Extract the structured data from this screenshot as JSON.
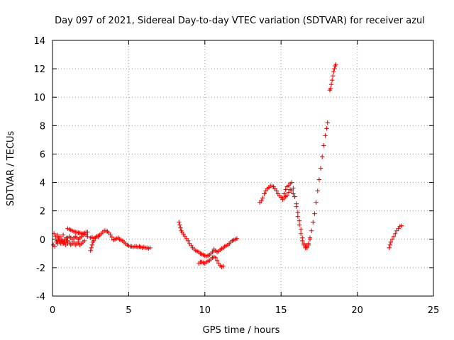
{
  "chart_data": {
    "type": "scatter",
    "title": "Day 097 of 2021, Sidereal Day-to-day VTEC variation (SDTVAR) for receiver azul",
    "xlabel": "GPS time / hours",
    "ylabel": "SDTVAR / TECUs",
    "xlim": [
      0,
      25
    ],
    "ylim": [
      -4,
      14
    ],
    "xticks": [
      "0",
      "5",
      "10",
      "15",
      "20",
      "25"
    ],
    "yticks": [
      "-4",
      "-2",
      "0",
      "2",
      "4",
      "6",
      "8",
      "10",
      "12",
      "14"
    ],
    "grid": true,
    "marker": "+",
    "color": "#ff0000",
    "series": [
      {
        "name": "SDTVAR",
        "segments": [
          [
            [
              0.05,
              -0.4
            ],
            [
              0.1,
              0.4
            ],
            [
              0.15,
              -0.5
            ],
            [
              0.2,
              0.2
            ],
            [
              0.25,
              -0.2
            ],
            [
              0.3,
              0.3
            ],
            [
              0.35,
              -0.3
            ],
            [
              0.4,
              0.1
            ],
            [
              0.45,
              -0.1
            ],
            [
              0.5,
              0.2
            ],
            [
              0.55,
              -0.3
            ],
            [
              0.6,
              0.0
            ],
            [
              0.65,
              -0.1
            ],
            [
              0.7,
              0.3
            ],
            [
              0.75,
              -0.2
            ],
            [
              0.8,
              0.0
            ],
            [
              0.85,
              -0.4
            ],
            [
              0.9,
              0.1
            ],
            [
              0.95,
              -0.1
            ],
            [
              1.0,
              0.1
            ]
          ],
          [
            [
              0.3,
              -0.1
            ],
            [
              0.4,
              0.0
            ],
            [
              0.5,
              -0.2
            ],
            [
              0.6,
              -0.1
            ],
            [
              0.7,
              -0.3
            ],
            [
              0.8,
              -0.2
            ],
            [
              0.9,
              -0.1
            ],
            [
              1.0,
              -0.3
            ],
            [
              1.1,
              -0.2
            ],
            [
              1.2,
              -0.4
            ],
            [
              1.3,
              -0.3
            ],
            [
              1.4,
              -0.2
            ],
            [
              1.5,
              -0.4
            ],
            [
              1.6,
              -0.3
            ],
            [
              1.7,
              -0.2
            ],
            [
              1.8,
              -0.4
            ],
            [
              1.9,
              -0.3
            ],
            [
              2.0,
              -0.2
            ],
            [
              2.1,
              -0.1
            ]
          ],
          [
            [
              1.0,
              0.75
            ],
            [
              1.1,
              0.7
            ],
            [
              1.2,
              0.65
            ],
            [
              1.3,
              0.6
            ],
            [
              1.4,
              0.55
            ],
            [
              1.5,
              0.5
            ],
            [
              1.6,
              0.5
            ],
            [
              1.7,
              0.45
            ],
            [
              1.8,
              0.45
            ],
            [
              1.9,
              0.4
            ],
            [
              2.0,
              0.4
            ],
            [
              2.1,
              0.45
            ],
            [
              2.2,
              0.5
            ],
            [
              2.3,
              0.5
            ]
          ],
          [
            [
              1.0,
              0.1
            ],
            [
              1.1,
              0.2
            ],
            [
              1.2,
              0.1
            ],
            [
              1.3,
              0.0
            ],
            [
              1.4,
              0.1
            ],
            [
              1.5,
              0.2
            ],
            [
              1.6,
              0.1
            ],
            [
              1.7,
              0.0
            ],
            [
              1.8,
              0.1
            ],
            [
              1.9,
              0.2
            ],
            [
              2.0,
              0.3
            ],
            [
              2.1,
              0.35
            ],
            [
              2.2,
              0.3
            ],
            [
              2.3,
              0.2
            ]
          ],
          [
            [
              2.5,
              -0.8
            ],
            [
              2.55,
              -0.6
            ],
            [
              2.6,
              -0.4
            ],
            [
              2.65,
              -0.2
            ],
            [
              2.7,
              -0.1
            ],
            [
              2.8,
              0.1
            ],
            [
              2.9,
              0.2
            ],
            [
              3.0,
              0.2
            ],
            [
              3.1,
              0.3
            ],
            [
              3.2,
              0.4
            ],
            [
              3.3,
              0.5
            ],
            [
              3.4,
              0.6
            ],
            [
              3.5,
              0.6
            ],
            [
              3.6,
              0.55
            ],
            [
              3.7,
              0.45
            ],
            [
              3.8,
              0.3
            ],
            [
              3.9,
              0.15
            ],
            [
              4.0,
              0.0
            ]
          ],
          [
            [
              2.5,
              0.1
            ],
            [
              2.6,
              0.15
            ],
            [
              2.7,
              0.05
            ],
            [
              2.8,
              0.1
            ],
            [
              2.9,
              0.2
            ],
            [
              3.0,
              0.25
            ]
          ],
          [
            [
              4.0,
              -0.05
            ],
            [
              4.1,
              0.0
            ],
            [
              4.2,
              0.05
            ],
            [
              4.3,
              0.1
            ],
            [
              4.4,
              0.0
            ],
            [
              4.5,
              -0.05
            ],
            [
              4.6,
              -0.1
            ],
            [
              4.7,
              -0.2
            ],
            [
              4.8,
              -0.3
            ],
            [
              4.9,
              -0.4
            ],
            [
              5.0,
              -0.45
            ],
            [
              5.1,
              -0.5
            ],
            [
              5.2,
              -0.5
            ],
            [
              5.3,
              -0.55
            ],
            [
              5.4,
              -0.5
            ],
            [
              5.5,
              -0.5
            ],
            [
              5.6,
              -0.55
            ],
            [
              5.7,
              -0.5
            ],
            [
              5.8,
              -0.55
            ],
            [
              5.9,
              -0.6
            ],
            [
              6.0,
              -0.55
            ],
            [
              6.1,
              -0.6
            ],
            [
              6.2,
              -0.6
            ],
            [
              6.3,
              -0.65
            ],
            [
              6.4,
              -0.6
            ]
          ],
          [
            [
              8.3,
              1.2
            ],
            [
              8.35,
              1.0
            ],
            [
              8.4,
              0.8
            ],
            [
              8.45,
              0.6
            ],
            [
              8.5,
              0.5
            ],
            [
              8.6,
              0.35
            ],
            [
              8.7,
              0.2
            ],
            [
              8.8,
              0.05
            ],
            [
              8.9,
              -0.1
            ],
            [
              9.0,
              -0.3
            ],
            [
              9.1,
              -0.45
            ],
            [
              9.2,
              -0.6
            ],
            [
              9.3,
              -0.7
            ],
            [
              9.4,
              -0.8
            ],
            [
              9.5,
              -0.85
            ],
            [
              9.6,
              -0.9
            ],
            [
              9.7,
              -1.0
            ],
            [
              9.8,
              -1.05
            ],
            [
              9.9,
              -1.1
            ],
            [
              10.0,
              -1.15
            ],
            [
              10.1,
              -1.2
            ],
            [
              10.2,
              -1.15
            ],
            [
              10.3,
              -1.1
            ],
            [
              10.4,
              -1.0
            ],
            [
              10.5,
              -0.9
            ],
            [
              10.6,
              -0.8
            ]
          ],
          [
            [
              9.6,
              -1.7
            ],
            [
              9.7,
              -1.6
            ],
            [
              9.8,
              -1.6
            ],
            [
              9.9,
              -1.65
            ],
            [
              10.0,
              -1.7
            ],
            [
              10.1,
              -1.6
            ],
            [
              10.2,
              -1.55
            ],
            [
              10.3,
              -1.5
            ],
            [
              10.4,
              -1.4
            ],
            [
              10.5,
              -1.3
            ],
            [
              10.6,
              -1.25
            ],
            [
              10.7,
              -1.3
            ],
            [
              10.8,
              -1.5
            ],
            [
              10.9,
              -1.7
            ],
            [
              11.0,
              -1.85
            ],
            [
              11.1,
              -1.95
            ],
            [
              11.2,
              -1.9
            ]
          ],
          [
            [
              10.6,
              -0.7
            ],
            [
              10.7,
              -0.8
            ],
            [
              10.8,
              -0.9
            ],
            [
              10.9,
              -0.85
            ],
            [
              11.0,
              -0.75
            ],
            [
              11.1,
              -0.65
            ],
            [
              11.2,
              -0.6
            ],
            [
              11.3,
              -0.5
            ],
            [
              11.4,
              -0.45
            ],
            [
              11.5,
              -0.4
            ],
            [
              11.6,
              -0.3
            ],
            [
              11.7,
              -0.2
            ],
            [
              11.8,
              -0.1
            ],
            [
              11.9,
              -0.05
            ],
            [
              12.0,
              0.0
            ],
            [
              12.1,
              0.05
            ]
          ],
          [
            [
              13.6,
              2.6
            ],
            [
              13.7,
              2.7
            ],
            [
              13.8,
              2.9
            ],
            [
              13.9,
              3.2
            ],
            [
              14.0,
              3.4
            ],
            [
              14.1,
              3.55
            ],
            [
              14.2,
              3.65
            ],
            [
              14.3,
              3.75
            ],
            [
              14.4,
              3.75
            ],
            [
              14.5,
              3.7
            ],
            [
              14.6,
              3.55
            ],
            [
              14.7,
              3.4
            ],
            [
              14.8,
              3.2
            ],
            [
              14.9,
              3.05
            ],
            [
              15.0,
              2.95
            ],
            [
              15.1,
              2.9
            ],
            [
              15.2,
              3.2
            ],
            [
              15.3,
              3.5
            ],
            [
              15.4,
              3.7
            ],
            [
              15.5,
              3.8
            ],
            [
              15.6,
              3.9
            ],
            [
              15.7,
              4.0
            ],
            [
              15.8,
              3.6
            ],
            [
              15.9,
              3.0
            ],
            [
              16.0,
              2.3
            ],
            [
              16.1,
              1.6
            ],
            [
              16.2,
              1.0
            ],
            [
              16.3,
              0.4
            ],
            [
              16.4,
              -0.1
            ],
            [
              16.5,
              -0.4
            ],
            [
              16.6,
              -0.6
            ],
            [
              16.7,
              -0.6
            ],
            [
              16.8,
              -0.4
            ],
            [
              16.9,
              0.0
            ],
            [
              17.0,
              0.6
            ],
            [
              17.1,
              1.2
            ],
            [
              17.2,
              1.8
            ],
            [
              17.3,
              2.6
            ],
            [
              17.4,
              3.4
            ],
            [
              17.5,
              4.2
            ],
            [
              17.6,
              5.0
            ],
            [
              17.7,
              5.8
            ],
            [
              17.8,
              6.6
            ],
            [
              17.9,
              7.3
            ],
            [
              18.0,
              7.8
            ],
            [
              18.05,
              8.2
            ]
          ],
          [
            [
              15.1,
              2.8
            ],
            [
              15.2,
              2.9
            ],
            [
              15.3,
              3.0
            ],
            [
              15.4,
              3.1
            ],
            [
              15.5,
              3.3
            ],
            [
              15.6,
              3.5
            ],
            [
              15.7,
              3.4
            ],
            [
              15.8,
              3.2
            ],
            [
              15.9,
              3.0
            ],
            [
              16.0,
              2.5
            ],
            [
              16.1,
              1.9
            ],
            [
              16.2,
              1.3
            ],
            [
              16.3,
              0.7
            ],
            [
              16.4,
              0.1
            ],
            [
              16.5,
              -0.3
            ],
            [
              16.6,
              -0.5
            ],
            [
              16.7,
              -0.5
            ],
            [
              16.8,
              -0.3
            ],
            [
              16.9,
              0.1
            ]
          ],
          [
            [
              18.2,
              10.5
            ],
            [
              18.25,
              10.6
            ],
            [
              18.3,
              10.9
            ],
            [
              18.35,
              11.2
            ],
            [
              18.4,
              11.5
            ],
            [
              18.45,
              11.8
            ],
            [
              18.5,
              12.0
            ],
            [
              18.55,
              12.2
            ],
            [
              18.6,
              12.3
            ]
          ],
          [
            [
              22.1,
              -0.6
            ],
            [
              22.15,
              -0.4
            ],
            [
              22.2,
              -0.2
            ],
            [
              22.3,
              0.0
            ],
            [
              22.4,
              0.2
            ],
            [
              22.5,
              0.4
            ],
            [
              22.6,
              0.6
            ],
            [
              22.7,
              0.75
            ],
            [
              22.8,
              0.9
            ],
            [
              22.9,
              0.95
            ]
          ]
        ]
      }
    ]
  }
}
